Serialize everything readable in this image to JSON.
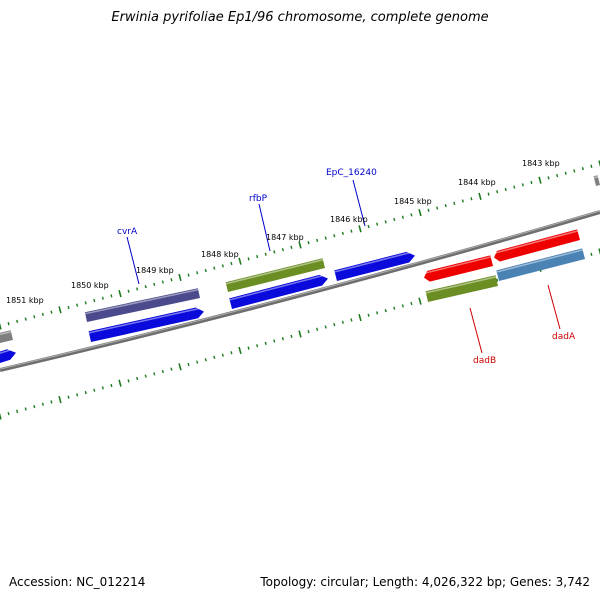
{
  "title": "Erwinia pyrifoliae Ep1/96 chromosome, complete genome",
  "footer": {
    "accession": "Accession: NC_012214",
    "topology": "Topology: circular; Length: 4,026,322 bp; Genes: 3,742"
  },
  "scale_labels": [
    "1843 kbp",
    "1844 kbp",
    "1845 kbp",
    "1846 kbp",
    "1847 kbp",
    "1848 kbp",
    "1849 kbp",
    "1850 kbp",
    "1851 kbp"
  ],
  "gene_labels": [
    {
      "name": "EpC_16240",
      "color": "#0000cc"
    },
    {
      "name": "rfbP",
      "color": "#0000cc"
    },
    {
      "name": "cvrA",
      "color": "#0000cc"
    },
    {
      "name": "dadB",
      "color": "#cc0000"
    },
    {
      "name": "dadA",
      "color": "#cc0000"
    }
  ],
  "colors": {
    "backbone": "#808080",
    "tick": "#1e7a1e",
    "blue_cds": "#0a0adc",
    "dark_blue_cds": "#4a4a8c",
    "green_cds": "#6b8e23",
    "red_cds": "#ee0000",
    "steel_blue_cds": "#4a82b4",
    "grey_cds": "#808080"
  }
}
